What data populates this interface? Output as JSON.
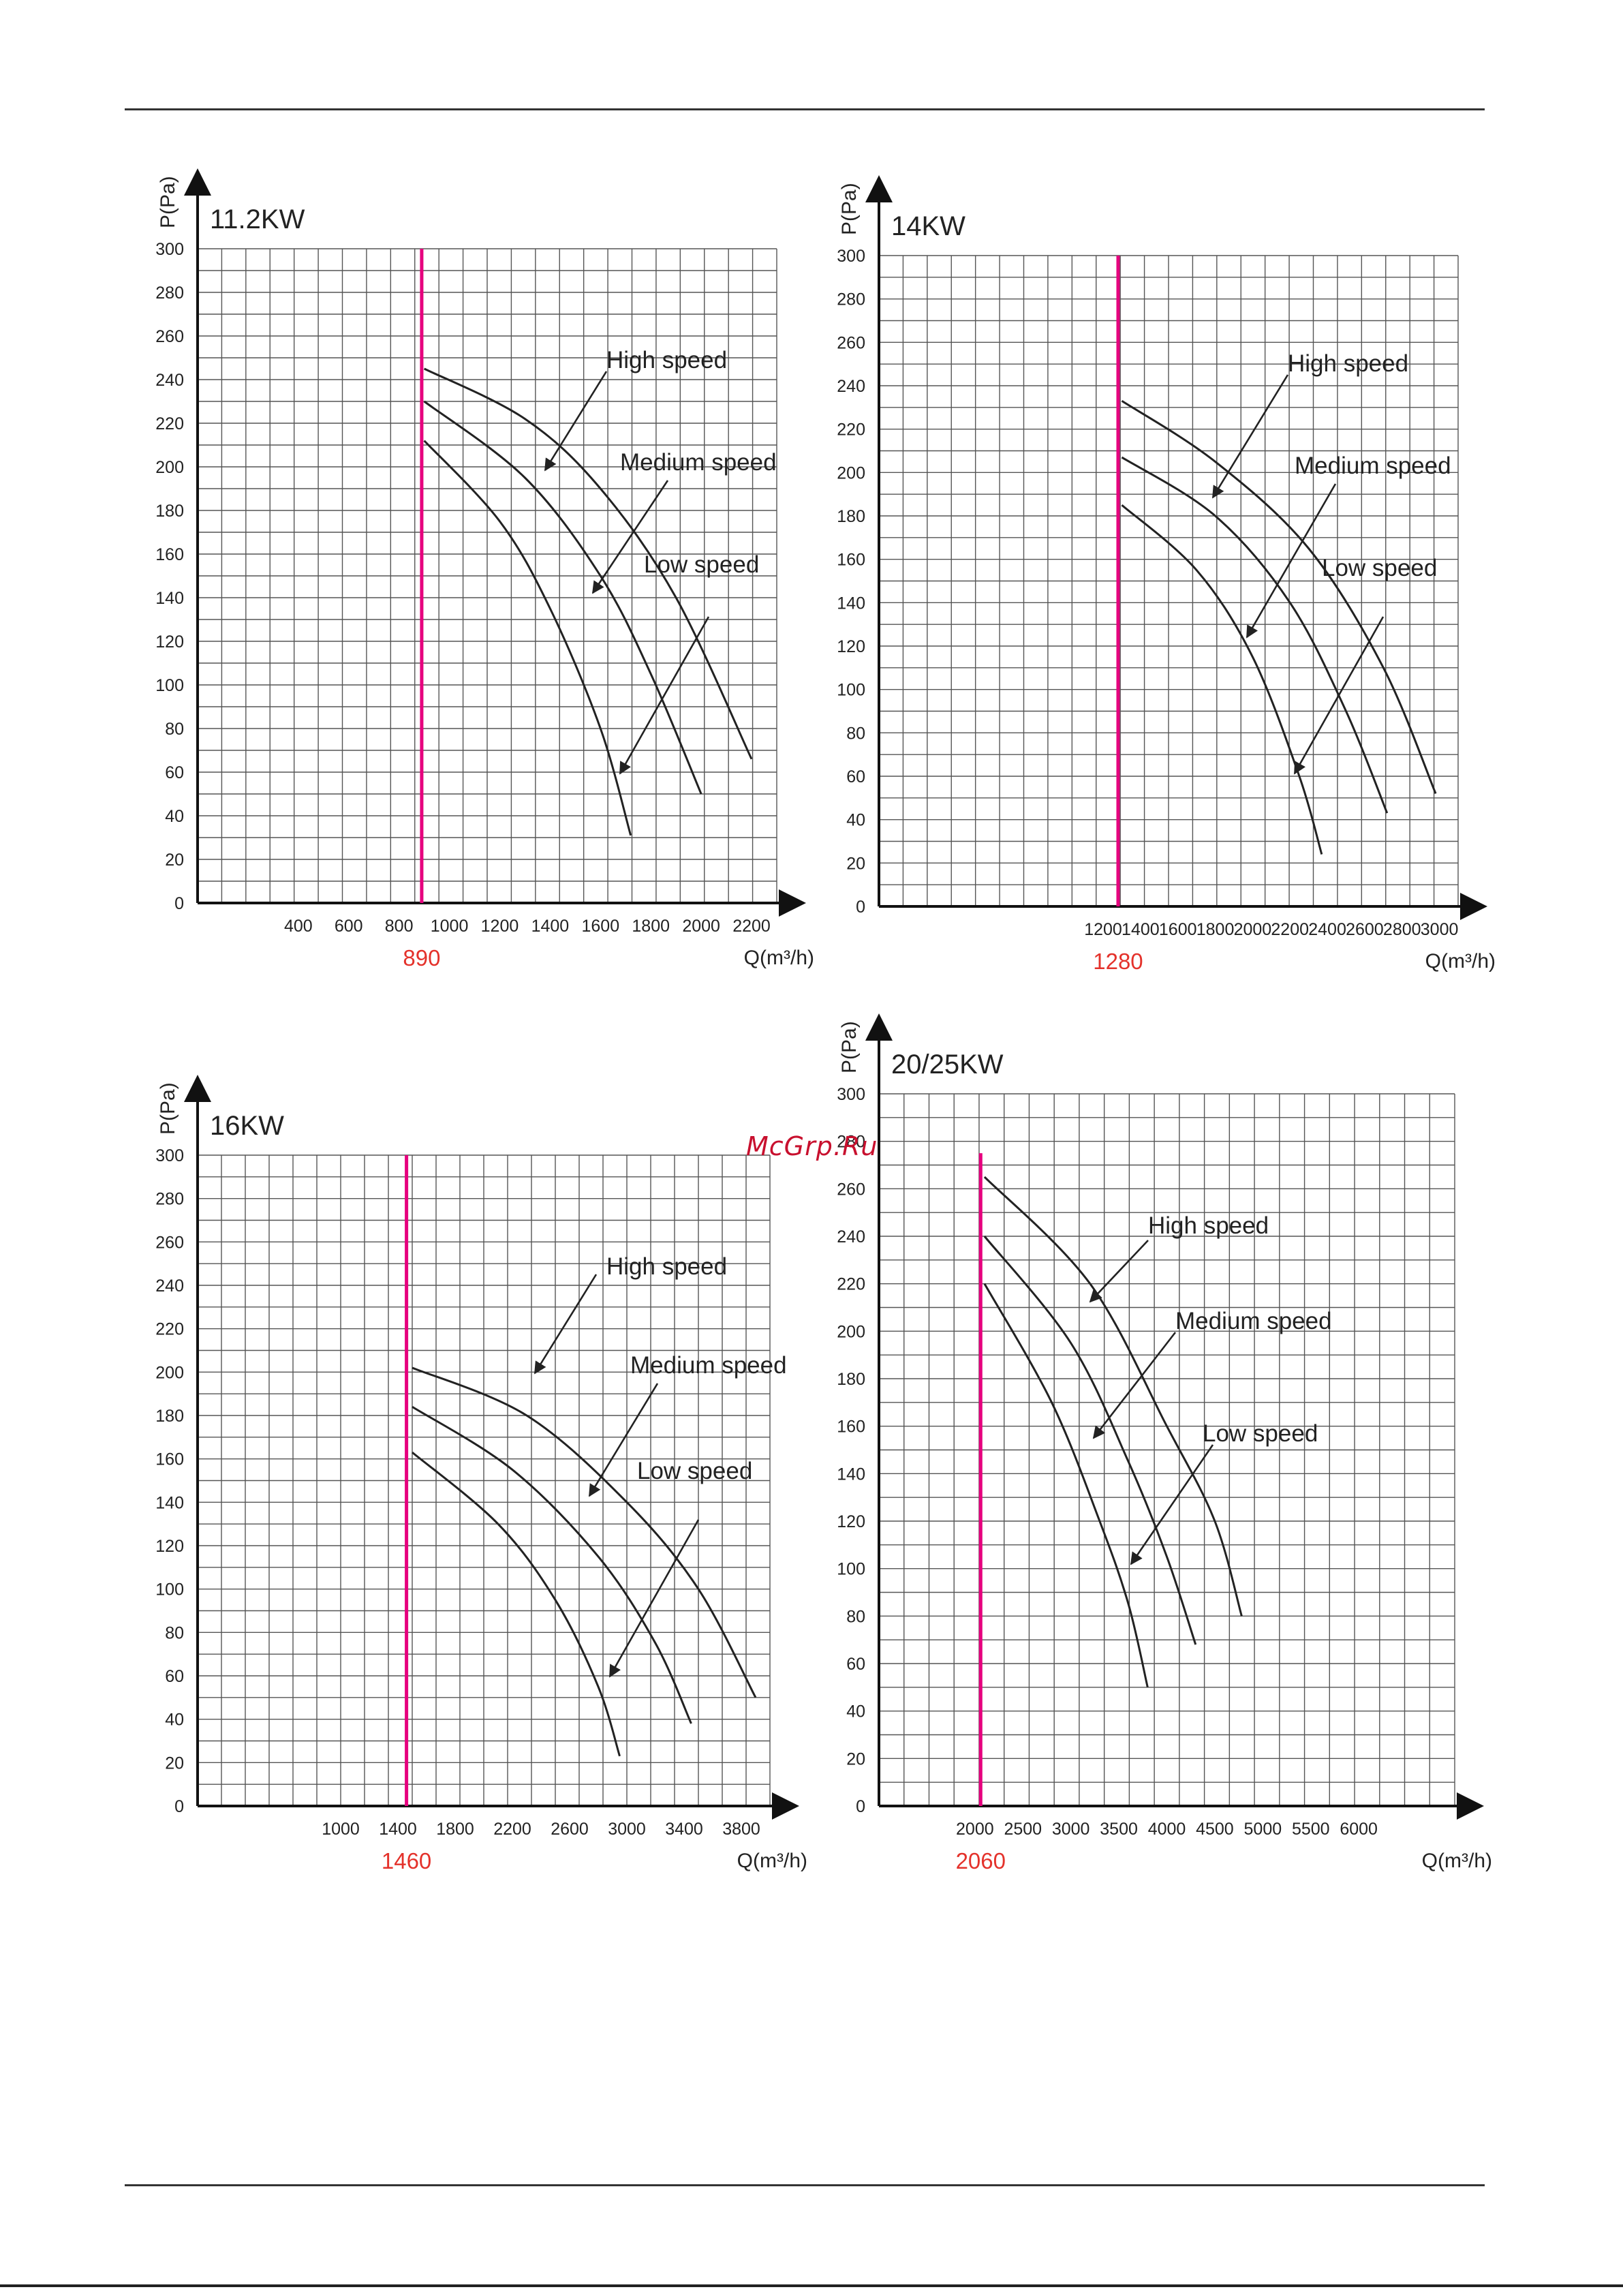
{
  "watermark": "McGrp.Ru",
  "chart_data": [
    {
      "type": "line",
      "title": "11.2KW",
      "ylabel": "P(Pa)",
      "xlabel": "Q(m³/h)",
      "ylim": [
        0,
        300
      ],
      "xlim": [
        0,
        2300
      ],
      "grid": true,
      "yticks": [
        0,
        20,
        40,
        60,
        80,
        100,
        120,
        140,
        160,
        180,
        200,
        220,
        240,
        260,
        280,
        300
      ],
      "xticks": [
        400,
        600,
        800,
        1000,
        1200,
        1400,
        1600,
        1800,
        2000,
        2200
      ],
      "marker": {
        "value": 890,
        "label": "890",
        "color": "#e6007e"
      },
      "series": [
        {
          "name": "High speed",
          "x": [
            900,
            1300,
            1600,
            1900,
            2200
          ],
          "y": [
            245,
            222,
            190,
            140,
            66
          ]
        },
        {
          "name": "Medium speed",
          "x": [
            900,
            1300,
            1600,
            1800,
            2000
          ],
          "y": [
            230,
            195,
            150,
            105,
            50
          ]
        },
        {
          "name": "Low speed",
          "x": [
            900,
            1200,
            1400,
            1600,
            1720
          ],
          "y": [
            212,
            175,
            135,
            80,
            31
          ]
        }
      ]
    },
    {
      "type": "line",
      "title": "14KW",
      "ylabel": "P(Pa)",
      "xlabel": "Q(m³/h)",
      "ylim": [
        0,
        300
      ],
      "xlim": [
        0,
        3100
      ],
      "grid": true,
      "yticks": [
        0,
        20,
        40,
        60,
        80,
        100,
        120,
        140,
        160,
        180,
        200,
        220,
        240,
        260,
        280,
        300
      ],
      "xticks": [
        1200,
        1400,
        1600,
        1800,
        2000,
        2200,
        2400,
        2600,
        2800,
        3000
      ],
      "marker": {
        "value": 1280,
        "label": "1280",
        "color": "#e6007e"
      },
      "series": [
        {
          "name": "High speed",
          "x": [
            1300,
            1800,
            2300,
            2700,
            2980
          ],
          "y": [
            233,
            205,
            165,
            110,
            52
          ]
        },
        {
          "name": "Medium speed",
          "x": [
            1300,
            1800,
            2200,
            2500,
            2720
          ],
          "y": [
            207,
            180,
            140,
            90,
            43
          ]
        },
        {
          "name": "Low speed",
          "x": [
            1300,
            1700,
            2000,
            2250,
            2370
          ],
          "y": [
            185,
            155,
            115,
            60,
            24
          ]
        }
      ]
    },
    {
      "type": "line",
      "title": "16KW",
      "ylabel": "P(Pa)",
      "xlabel": "Q(m³/h)",
      "ylim": [
        0,
        300
      ],
      "xlim": [
        0,
        4000
      ],
      "grid": true,
      "yticks": [
        0,
        20,
        40,
        60,
        80,
        100,
        120,
        140,
        160,
        180,
        200,
        220,
        240,
        260,
        280,
        300
      ],
      "xticks": [
        1000,
        1400,
        1800,
        2200,
        2600,
        3000,
        3400,
        3800
      ],
      "marker": {
        "value": 1460,
        "label": "1460",
        "color": "#e6007e"
      },
      "series": [
        {
          "name": "High speed",
          "x": [
            1500,
            2300,
            3000,
            3500,
            3900
          ],
          "y": [
            202,
            180,
            140,
            100,
            50
          ]
        },
        {
          "name": "Medium speed",
          "x": [
            1500,
            2200,
            2800,
            3200,
            3450
          ],
          "y": [
            184,
            155,
            115,
            75,
            38
          ]
        },
        {
          "name": "Low speed",
          "x": [
            1500,
            2100,
            2500,
            2800,
            2950
          ],
          "y": [
            163,
            130,
            95,
            55,
            23
          ]
        }
      ]
    },
    {
      "type": "line",
      "title": "20/25KW",
      "ylabel": "P(Pa)",
      "xlabel": "Q(m³/h)",
      "ylim": [
        0,
        300
      ],
      "xlim": [
        1000,
        7000
      ],
      "grid": true,
      "yticks": [
        0,
        20,
        40,
        60,
        80,
        100,
        120,
        140,
        160,
        180,
        200,
        220,
        240,
        260,
        280,
        300
      ],
      "xticks": [
        2000,
        2500,
        3000,
        3500,
        4000,
        4500,
        5000,
        5500,
        6000
      ],
      "marker": {
        "value": 2060,
        "label": "2060",
        "color": "#e6007e"
      },
      "series": [
        {
          "name": "High speed",
          "x": [
            2100,
            3200,
            4000,
            4500,
            4780
          ],
          "y": [
            265,
            220,
            160,
            120,
            80
          ]
        },
        {
          "name": "Medium speed",
          "x": [
            2100,
            3000,
            3600,
            4000,
            4300
          ],
          "y": [
            240,
            195,
            145,
            105,
            68
          ]
        },
        {
          "name": "Low speed",
          "x": [
            2100,
            2800,
            3300,
            3600,
            3800
          ],
          "y": [
            220,
            170,
            120,
            85,
            50
          ]
        }
      ]
    }
  ]
}
